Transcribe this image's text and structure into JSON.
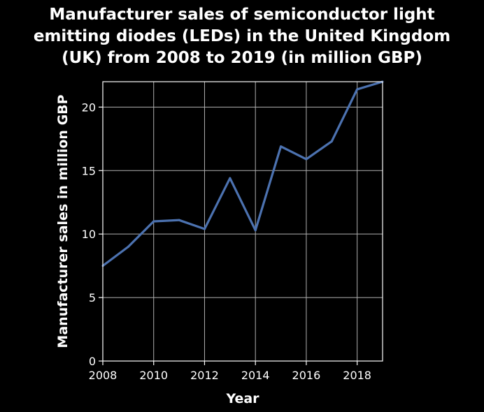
{
  "chart_data": {
    "type": "line",
    "title_lines": [
      "Manufacturer sales of semiconductor light",
      "emitting diodes (LEDs) in the United Kingdom",
      "(UK) from 2008 to 2019 (in million GBP)"
    ],
    "xlabel": "Year",
    "ylabel": "Manufacturer sales in million GBP",
    "x": [
      2008,
      2009,
      2010,
      2011,
      2012,
      2013,
      2014,
      2015,
      2016,
      2017,
      2018,
      2019
    ],
    "series": [
      {
        "values": [
          7.5,
          9.0,
          11.0,
          11.1,
          10.4,
          14.4,
          10.3,
          16.9,
          15.9,
          17.3,
          21.4,
          22.0
        ]
      }
    ],
    "x_ticks": [
      2008,
      2010,
      2012,
      2014,
      2016,
      2018
    ],
    "x_tick_labels": [
      "2008",
      "2010",
      "2012",
      "2014",
      "2016",
      "2018"
    ],
    "y_ticks": [
      0,
      5,
      10,
      15,
      20
    ],
    "y_tick_labels": [
      "0",
      "5",
      "10",
      "15",
      "20"
    ],
    "xlim": [
      2008,
      2019
    ],
    "ylim": [
      0,
      22
    ],
    "grid": true,
    "colors": {
      "background": "#000000",
      "line": "#4c72b0",
      "grid": "#b0b0b0",
      "text": "#ffffff"
    }
  }
}
